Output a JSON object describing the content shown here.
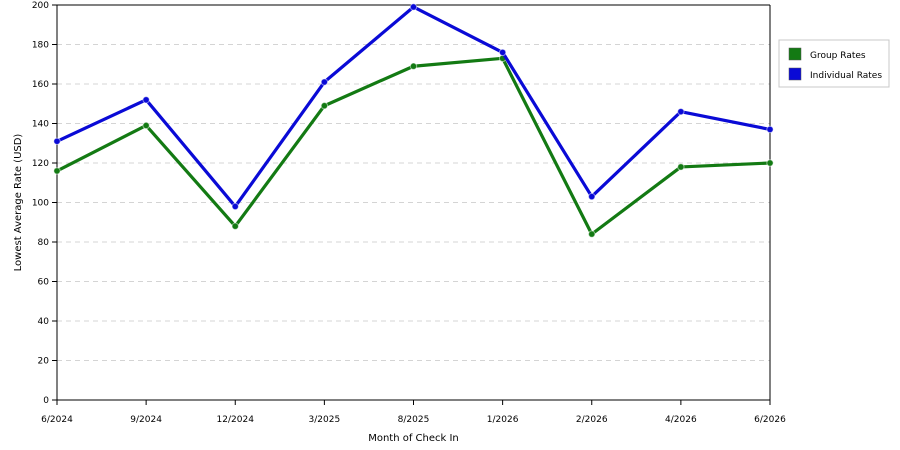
{
  "chart_data": {
    "type": "line",
    "title": "",
    "xlabel": "Month of Check In",
    "ylabel": "Lowest Average Rate (USD)",
    "categories": [
      "6/2024",
      "9/2024",
      "12/2024",
      "3/2025",
      "8/2025",
      "1/2026",
      "2/2026",
      "4/2026",
      "6/2026"
    ],
    "ylim": [
      0,
      200
    ],
    "yticks": [
      0,
      20,
      40,
      60,
      80,
      100,
      120,
      140,
      160,
      180,
      200
    ],
    "grid": true,
    "legend_position": "right",
    "series": [
      {
        "name": "Group Rates",
        "color": "#137a13",
        "values": [
          116,
          139,
          88,
          149,
          169,
          173,
          84,
          118,
          120
        ]
      },
      {
        "name": "Individual Rates",
        "color": "#0a0ad6",
        "values": [
          131,
          152,
          98,
          161,
          199,
          176,
          103,
          146,
          137
        ]
      }
    ]
  }
}
